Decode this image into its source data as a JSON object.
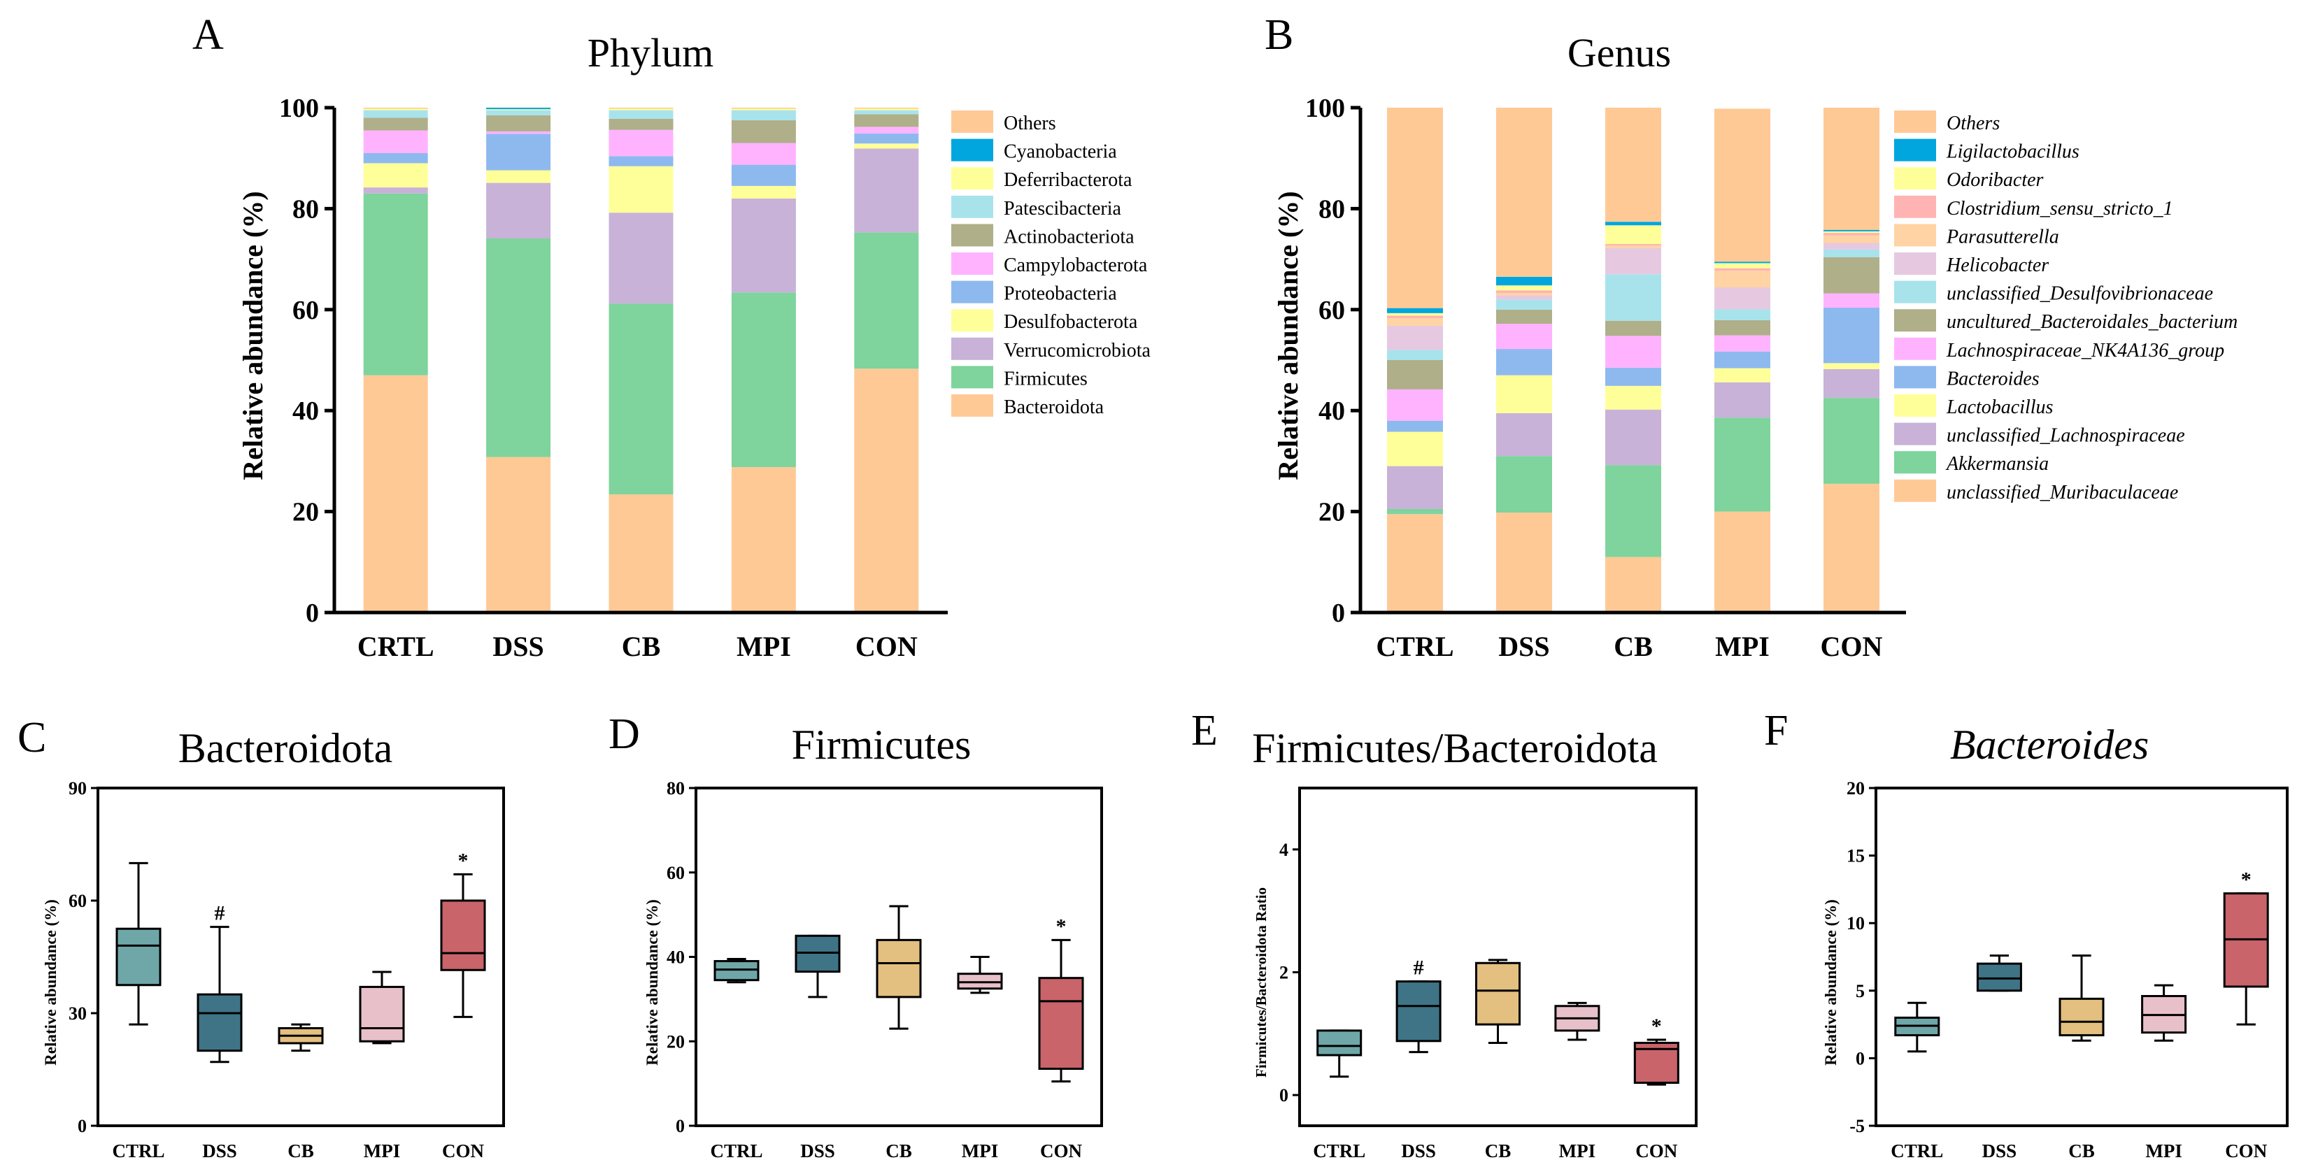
{
  "panel_letters": [
    "A",
    "B",
    "C",
    "D",
    "E",
    "F"
  ],
  "axis_text": {
    "relative_abundance_top": "Relative abundance (%)",
    "relative_abundance_bottom": "Relative abundance (%)",
    "ratio": "Firmicutes/Bacteroidota Ratio"
  },
  "chart_data": [
    {
      "type": "stacked-bar",
      "panel": "A",
      "title": "Phylum",
      "xlabel": "",
      "ylabel": "Relative abundance (%)",
      "ylim": [
        0,
        100
      ],
      "yticks": [
        0,
        20,
        40,
        60,
        80,
        100
      ],
      "legend_italic": false,
      "legend_position": "right",
      "categories": [
        "CRTL",
        "DSS",
        "CB",
        "MPI",
        "CON"
      ],
      "series": [
        {
          "name": "Bacteroidota",
          "color": "#FFC996",
          "values": [
            47.0,
            30.8,
            23.4,
            28.8,
            48.3
          ]
        },
        {
          "name": "Firmicutes",
          "color": "#7ED49C",
          "values": [
            36.0,
            43.3,
            37.8,
            34.6,
            27.0
          ]
        },
        {
          "name": "Verrucomicrobiota",
          "color": "#C8B2D8",
          "values": [
            1.2,
            11.0,
            18.0,
            18.6,
            16.6
          ]
        },
        {
          "name": "Desulfobacterota",
          "color": "#FFFF99",
          "values": [
            4.8,
            2.5,
            9.2,
            2.5,
            1.0
          ]
        },
        {
          "name": "Proteobacteria",
          "color": "#8EB9EF",
          "values": [
            2.0,
            7.2,
            2.0,
            4.2,
            2.0
          ]
        },
        {
          "name": "Campylobacterota",
          "color": "#FFB3FF",
          "values": [
            4.5,
            0.5,
            5.2,
            4.3,
            1.3
          ]
        },
        {
          "name": "Actinobacteriota",
          "color": "#AFAF8A",
          "values": [
            2.5,
            3.2,
            2.2,
            4.5,
            2.5
          ]
        },
        {
          "name": "Patescibacteria",
          "color": "#A8E3EC",
          "values": [
            1.5,
            1.0,
            1.7,
            2.0,
            0.8
          ]
        },
        {
          "name": "Deferribacterota",
          "color": "#FFFF99",
          "values": [
            0.3,
            0.2,
            0.3,
            0.3,
            0.3
          ]
        },
        {
          "name": "Cyanobacteria",
          "color": "#00A6DD",
          "values": [
            0.0,
            0.3,
            0.0,
            0.0,
            0.0
          ]
        },
        {
          "name": "Others",
          "color": "#FFC996",
          "values": [
            0.2,
            0.0,
            0.2,
            0.2,
            0.2
          ]
        }
      ]
    },
    {
      "type": "stacked-bar",
      "panel": "B",
      "title": "Genus",
      "xlabel": "",
      "ylabel": "Relative abundance (%)",
      "ylim": [
        0,
        100
      ],
      "yticks": [
        0,
        20,
        40,
        60,
        80,
        100
      ],
      "legend_italic": true,
      "legend_position": "right",
      "categories": [
        "CTRL",
        "DSS",
        "CB",
        "MPI",
        "CON"
      ],
      "series": [
        {
          "name": "unclassified_Muribaculaceae",
          "color": "#FFC996",
          "values": [
            19.5,
            19.8,
            11.0,
            20.0,
            25.5
          ]
        },
        {
          "name": "Akkermansia",
          "color": "#7ED49C",
          "values": [
            1.0,
            11.2,
            18.2,
            18.6,
            17.0
          ]
        },
        {
          "name": "unclassified_Lachnospiraceae",
          "color": "#C8B2D8",
          "values": [
            8.5,
            8.5,
            11.0,
            7.0,
            5.7
          ]
        },
        {
          "name": "Lactobacillus",
          "color": "#FFFF99",
          "values": [
            6.8,
            7.5,
            4.7,
            2.8,
            1.2
          ]
        },
        {
          "name": "Bacteroides",
          "color": "#8EB9EF",
          "values": [
            2.2,
            5.2,
            3.6,
            3.3,
            11.0
          ]
        },
        {
          "name": "Lachnospiraceae_NK4A136_group",
          "color": "#FFB3FF",
          "values": [
            6.2,
            5.0,
            6.3,
            3.2,
            2.8
          ]
        },
        {
          "name": "uncultured_Bacteroidales_bacterium",
          "color": "#AFAF8A",
          "values": [
            5.8,
            2.8,
            3.0,
            3.0,
            7.2
          ]
        },
        {
          "name": "unclassified_Desulfovibrionaceae",
          "color": "#A8E3EC",
          "values": [
            2.0,
            2.0,
            9.2,
            2.2,
            1.5
          ]
        },
        {
          "name": "Helicobacter",
          "color": "#E6C9E1",
          "values": [
            4.8,
            0.8,
            5.2,
            4.3,
            1.3
          ]
        },
        {
          "name": "Parasutterella",
          "color": "#FFD3A3",
          "values": [
            1.5,
            0.5,
            0.5,
            3.3,
            1.5
          ]
        },
        {
          "name": "Clostridium_sensu_stricto_1",
          "color": "#FFB3B3",
          "values": [
            0.5,
            0.5,
            0.3,
            0.5,
            0.5
          ]
        },
        {
          "name": "Odoribacter",
          "color": "#FFFF99",
          "values": [
            0.5,
            1.0,
            3.7,
            1.0,
            0.3
          ]
        },
        {
          "name": "Ligilactobacillus",
          "color": "#00A6DD",
          "values": [
            1.0,
            1.7,
            0.7,
            0.3,
            0.3
          ]
        },
        {
          "name": "Others",
          "color": "#FFC996",
          "values": [
            39.7,
            33.5,
            22.6,
            30.3,
            24.2
          ]
        }
      ]
    },
    {
      "type": "boxplot",
      "panel": "C",
      "title": "Bacteroidota",
      "title_italic": false,
      "ylabel": "Relative abundance (%)",
      "ylim": [
        0,
        90
      ],
      "yticks": [
        0,
        30,
        60,
        90
      ],
      "categories": [
        "CTRL",
        "DSS",
        "CB",
        "MPI",
        "CON"
      ],
      "boxes": [
        {
          "min": 27,
          "q1": 37.5,
          "median": 48,
          "q3": 52.5,
          "max": 70,
          "color": "#6FA7A9",
          "mark": ""
        },
        {
          "min": 17,
          "q1": 20,
          "median": 30,
          "q3": 35,
          "max": 53,
          "color": "#3F7487",
          "mark": "#"
        },
        {
          "min": 20,
          "q1": 22,
          "median": 24,
          "q3": 26,
          "max": 27,
          "color": "#E3BF80",
          "mark": ""
        },
        {
          "min": 22,
          "q1": 22.5,
          "median": 26,
          "q3": 37,
          "max": 41,
          "color": "#E8C0C9",
          "mark": ""
        },
        {
          "min": 29,
          "q1": 41.5,
          "median": 46,
          "q3": 60,
          "max": 67,
          "color": "#C9646A",
          "mark": "*"
        }
      ]
    },
    {
      "type": "boxplot",
      "panel": "D",
      "title": "Firmicutes",
      "title_italic": false,
      "ylabel": "Relative abundance (%)",
      "ylim": [
        0,
        80
      ],
      "yticks": [
        0,
        20,
        40,
        60,
        80
      ],
      "categories": [
        "CTRL",
        "DSS",
        "CB",
        "MPI",
        "CON"
      ],
      "boxes": [
        {
          "min": 34,
          "q1": 34.5,
          "median": 37,
          "q3": 39,
          "max": 39.5,
          "color": "#6FA7A9",
          "mark": ""
        },
        {
          "min": 30.5,
          "q1": 36.5,
          "median": 41,
          "q3": 45,
          "max": 45,
          "color": "#3F7487",
          "mark": ""
        },
        {
          "min": 23,
          "q1": 30.5,
          "median": 38.5,
          "q3": 44,
          "max": 52,
          "color": "#E3BF80",
          "mark": ""
        },
        {
          "min": 31.5,
          "q1": 32.5,
          "median": 34,
          "q3": 36,
          "max": 40,
          "color": "#E8C0C9",
          "mark": ""
        },
        {
          "min": 10.5,
          "q1": 13.5,
          "median": 29.5,
          "q3": 35,
          "max": 44,
          "color": "#C9646A",
          "mark": "*"
        }
      ]
    },
    {
      "type": "boxplot",
      "panel": "E",
      "title": "Firmicutes/Bacteroidota",
      "title_italic": false,
      "ylabel": "Firmicutes/Bacteroidota Ratio",
      "ylim": [
        -0.5,
        5
      ],
      "yticks": [
        0,
        2,
        4
      ],
      "categories": [
        "CTRL",
        "DSS",
        "CB",
        "MPI",
        "CON"
      ],
      "boxes": [
        {
          "min": 0.3,
          "q1": 0.65,
          "median": 0.8,
          "q3": 1.05,
          "max": 1.05,
          "color": "#6FA7A9",
          "mark": ""
        },
        {
          "min": 0.7,
          "q1": 0.88,
          "median": 1.45,
          "q3": 1.85,
          "max": 1.85,
          "color": "#3F7487",
          "mark": "#"
        },
        {
          "min": 0.85,
          "q1": 1.15,
          "median": 1.7,
          "q3": 2.15,
          "max": 2.2,
          "color": "#E3BF80",
          "mark": ""
        },
        {
          "min": 0.9,
          "q1": 1.05,
          "median": 1.25,
          "q3": 1.45,
          "max": 1.5,
          "color": "#E8C0C9",
          "mark": ""
        },
        {
          "min": 0.17,
          "q1": 0.2,
          "median": 0.75,
          "q3": 0.85,
          "max": 0.9,
          "color": "#C9646A",
          "mark": "*"
        }
      ]
    },
    {
      "type": "boxplot",
      "panel": "F",
      "title": "Bacteroides",
      "title_italic": true,
      "ylabel": "Relative abundance (%)",
      "ylim": [
        -5,
        20
      ],
      "yticks": [
        -5,
        0,
        5,
        10,
        15,
        20
      ],
      "categories": [
        "CTRL",
        "DSS",
        "CB",
        "MPI",
        "CON"
      ],
      "boxes": [
        {
          "min": 0.5,
          "q1": 1.7,
          "median": 2.4,
          "q3": 3.0,
          "max": 4.1,
          "color": "#6FA7A9",
          "mark": ""
        },
        {
          "min": 5.0,
          "q1": 5.0,
          "median": 5.9,
          "q3": 7.0,
          "max": 7.6,
          "color": "#3F7487",
          "mark": ""
        },
        {
          "min": 1.3,
          "q1": 1.7,
          "median": 2.7,
          "q3": 4.4,
          "max": 7.6,
          "color": "#E3BF80",
          "mark": ""
        },
        {
          "min": 1.3,
          "q1": 1.9,
          "median": 3.2,
          "q3": 4.6,
          "max": 5.4,
          "color": "#E8C0C9",
          "mark": ""
        },
        {
          "min": 2.5,
          "q1": 5.3,
          "median": 8.8,
          "q3": 12.2,
          "max": 12.2,
          "color": "#C9646A",
          "mark": "*"
        }
      ]
    }
  ]
}
